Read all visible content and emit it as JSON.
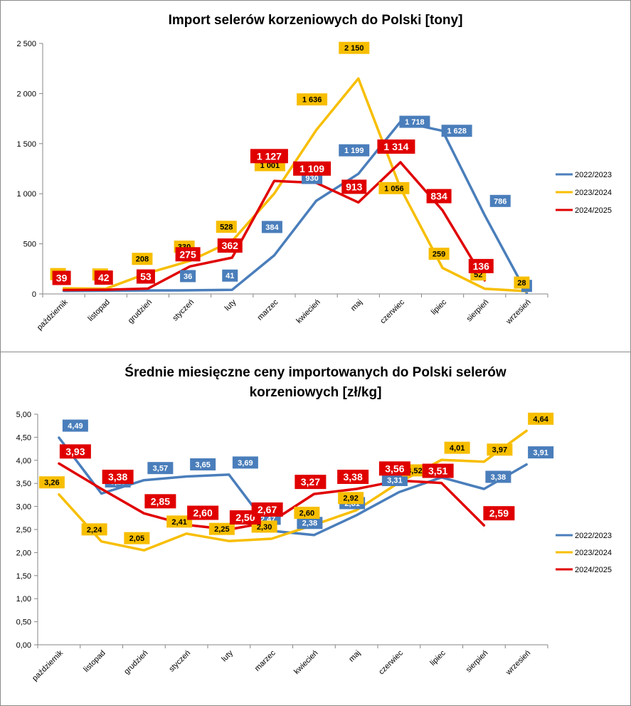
{
  "chart_data": [
    {
      "type": "line",
      "title": "Import selerów korzeniowych do Polski [tony]",
      "categories": [
        "październik",
        "listopad",
        "grudzień",
        "styczeń",
        "luty",
        "marzec",
        "kwiecień",
        "maj",
        "czerwiec",
        "lipiec",
        "sierpień",
        "wrzesień"
      ],
      "yticks": [
        "0",
        "500",
        "1 000",
        "1 500",
        "2 000",
        "2 500"
      ],
      "ylim": [
        0,
        2500
      ],
      "grid": false,
      "legend": "right",
      "series": [
        {
          "name": "2022/2023",
          "color": "#4A7EBB",
          "values": [
            30,
            32,
            35,
            36,
            41,
            384,
            930,
            1199,
            1718,
            1628,
            786,
            9
          ],
          "labels": [
            "30",
            "32",
            "35",
            "36",
            "41",
            "384",
            "930",
            "1 199",
            "1 718",
            "1 628",
            "786",
            "9"
          ]
        },
        {
          "name": "2023/2024",
          "color": "#F7BE00",
          "values": [
            56,
            52,
            208,
            330,
            528,
            1001,
            1636,
            2150,
            1056,
            259,
            52,
            28
          ],
          "labels": [
            "56",
            "52",
            "208",
            "330",
            "528",
            "1 001",
            "1 636",
            "2 150",
            "1 056",
            "259",
            "52",
            "28"
          ]
        },
        {
          "name": "2024/2025",
          "color": "#E00000",
          "values": [
            39,
            42,
            53,
            275,
            362,
            1127,
            1109,
            913,
            1314,
            834,
            136,
            null
          ],
          "labels": [
            "39",
            "42",
            "53",
            "275",
            "362",
            "1 127",
            "1 109",
            "913",
            "1 314",
            "834",
            "136",
            null
          ]
        }
      ]
    },
    {
      "type": "line",
      "title": "Średnie miesięczne ceny importowanych do Polski selerów korzeniowych [zł/kg]",
      "title_lines": [
        "Średnie miesięczne ceny importowanych do Polski selerów",
        "korzeniowych [zł/kg]"
      ],
      "categories": [
        "październik",
        "listopad",
        "grudzień",
        "styczeń",
        "luty",
        "marzec",
        "kwiecień",
        "maj",
        "czerwiec",
        "lipiec",
        "sierpień",
        "wrzesień"
      ],
      "yticks": [
        "0,00",
        "0,50",
        "1,00",
        "1,50",
        "2,00",
        "2,50",
        "3,00",
        "3,50",
        "4,00",
        "4,50",
        "5,00"
      ],
      "ylim": [
        0,
        5
      ],
      "grid": false,
      "legend": "right",
      "series": [
        {
          "name": "2022/2023",
          "color": "#4A7EBB",
          "values": [
            4.49,
            3.28,
            3.57,
            3.65,
            3.69,
            2.47,
            2.38,
            2.81,
            3.31,
            3.63,
            3.38,
            3.91
          ],
          "labels": [
            "4,49",
            "3,28",
            "3,57",
            "3,65",
            "3,69",
            "2,47",
            "2,38",
            "2,81",
            "3,31",
            "3,63",
            "3,38",
            "3,91"
          ]
        },
        {
          "name": "2023/2024",
          "color": "#F7BE00",
          "values": [
            3.26,
            2.24,
            2.05,
            2.41,
            2.25,
            2.3,
            2.6,
            2.92,
            3.52,
            4.01,
            3.97,
            4.64
          ],
          "labels": [
            "3,26",
            "2,24",
            "2,05",
            "2,41",
            "2,25",
            "2,30",
            "2,60",
            "2,92",
            "3,52",
            "4,01",
            "3,97",
            "4,64"
          ]
        },
        {
          "name": "2024/2025",
          "color": "#E00000",
          "values": [
            3.93,
            3.38,
            2.85,
            2.6,
            2.5,
            2.67,
            3.27,
            3.38,
            3.56,
            3.51,
            2.59,
            null
          ],
          "labels": [
            "3,93",
            "3,38",
            "2,85",
            "2,60",
            "2,50",
            "2,67",
            "3,27",
            "3,38",
            "3,56",
            "3,51",
            "2,59",
            null
          ]
        }
      ]
    }
  ]
}
